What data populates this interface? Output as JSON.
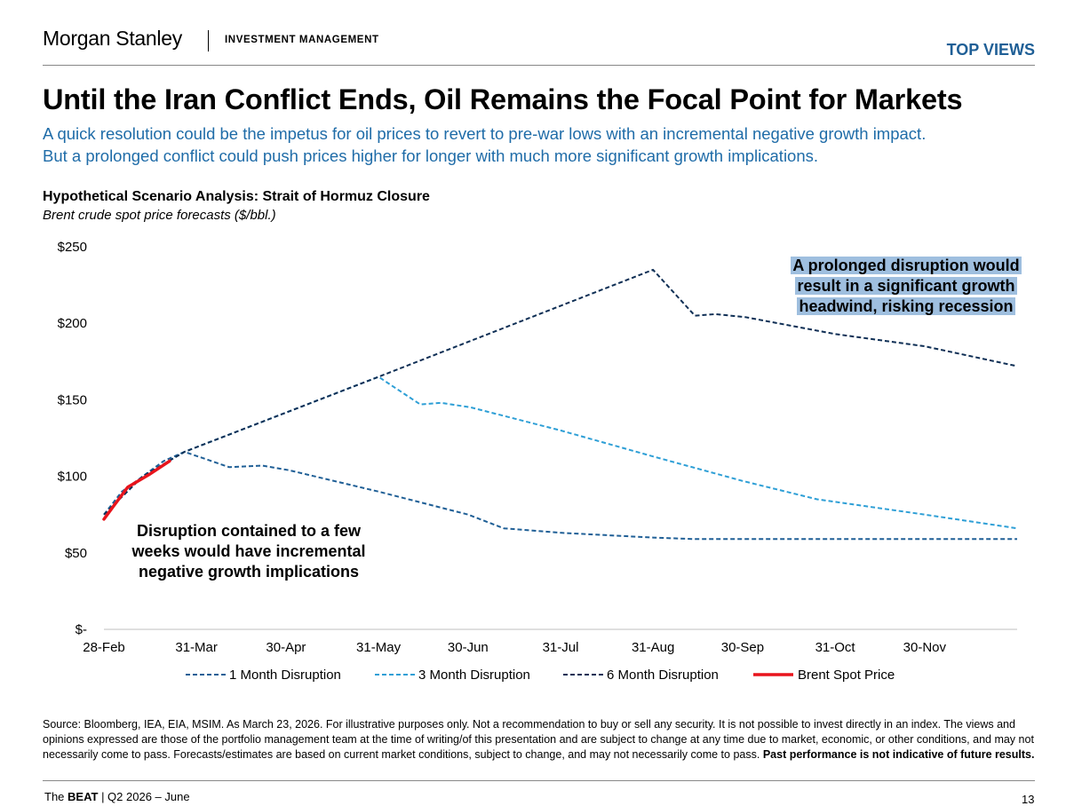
{
  "header": {
    "brand": "Morgan Stanley",
    "division": "INVESTMENT MANAGEMENT",
    "section": "TOP VIEWS"
  },
  "headline": {
    "title": "Until the Iran Conflict Ends, Oil Remains the Focal Point for Markets",
    "subtitle_lines": [
      "A quick resolution could be the impetus for oil prices to revert to pre-war lows with an incremental negative growth impact.",
      "But a prolonged conflict could push prices higher for longer with much more significant growth implications."
    ]
  },
  "chart_data": {
    "type": "line",
    "title": "Hypothetical Scenario Analysis: Strait of Hormuz Closure",
    "subtitle": "Brent crude spot price forecasts ($/bbl.)",
    "x_tick_labels": [
      "28-Feb",
      "31-Mar",
      "30-Apr",
      "31-May",
      "30-Jun",
      "31-Jul",
      "31-Aug",
      "30-Sep",
      "31-Oct",
      "30-Nov"
    ],
    "x_range": [
      "2026-02-28",
      "2026-12-31"
    ],
    "y_tick_labels": [
      "$-",
      "$50",
      "$100",
      "$150",
      "$200",
      "$250"
    ],
    "ylim": [
      0,
      250
    ],
    "grid": false,
    "legend_position": "bottom",
    "series": [
      {
        "name": "1 Month Disruption",
        "color": "#1f5f96",
        "style": "dashed",
        "points": [
          [
            "2026-02-28",
            75
          ],
          [
            "2026-03-06",
            90
          ],
          [
            "2026-03-13",
            100
          ],
          [
            "2026-03-20",
            110
          ],
          [
            "2026-03-27",
            116
          ],
          [
            "2026-04-11",
            106
          ],
          [
            "2026-04-22",
            107
          ],
          [
            "2026-05-01",
            104
          ],
          [
            "2026-05-31",
            90
          ],
          [
            "2026-06-30",
            75
          ],
          [
            "2026-07-12",
            66
          ],
          [
            "2026-08-01",
            63
          ],
          [
            "2026-08-31",
            60
          ],
          [
            "2026-09-14",
            59
          ],
          [
            "2026-10-31",
            59
          ],
          [
            "2026-12-31",
            59
          ]
        ]
      },
      {
        "name": "3 Month Disruption",
        "color": "#2e9fd6",
        "style": "dashed",
        "points": [
          [
            "2026-02-28",
            75
          ],
          [
            "2026-03-13",
            100
          ],
          [
            "2026-03-27",
            116
          ],
          [
            "2026-05-31",
            165
          ],
          [
            "2026-06-14",
            147
          ],
          [
            "2026-06-21",
            148
          ],
          [
            "2026-07-01",
            145
          ],
          [
            "2026-07-31",
            130
          ],
          [
            "2026-08-31",
            113
          ],
          [
            "2026-09-30",
            97
          ],
          [
            "2026-10-25",
            85
          ],
          [
            "2026-11-30",
            75
          ],
          [
            "2026-12-31",
            66
          ]
        ]
      },
      {
        "name": "6 Month Disruption",
        "color": "#0f2f55",
        "style": "dashed",
        "points": [
          [
            "2026-02-28",
            75
          ],
          [
            "2026-03-13",
            100
          ],
          [
            "2026-03-27",
            116
          ],
          [
            "2026-05-31",
            165
          ],
          [
            "2026-08-31",
            235
          ],
          [
            "2026-09-14",
            205
          ],
          [
            "2026-09-21",
            206
          ],
          [
            "2026-10-01",
            204
          ],
          [
            "2026-10-31",
            193
          ],
          [
            "2026-11-30",
            185
          ],
          [
            "2026-12-31",
            172
          ]
        ]
      },
      {
        "name": "Brent Spot Price",
        "color": "#e8141c",
        "style": "solid",
        "points": [
          [
            "2026-02-28",
            72
          ],
          [
            "2026-03-03",
            80
          ],
          [
            "2026-03-08",
            93
          ],
          [
            "2026-03-15",
            101
          ],
          [
            "2026-03-22",
            110
          ]
        ]
      }
    ],
    "annotations": [
      {
        "text_lines": [
          "Disruption contained to a few",
          "weeks would have incremental",
          "negative growth implications"
        ],
        "highlight": false
      },
      {
        "text_lines": [
          "A prolonged disruption would",
          "result in a significant growth",
          "headwind, risking recession"
        ],
        "highlight": true,
        "highlight_color": "#9fbfdf"
      }
    ]
  },
  "source_text": "Source: Bloomberg, IEA, EIA, MSIM. As March 23, 2026. For illustrative purposes only. Not a recommendation to buy or sell any security. It is not possible to invest directly in an index. The views and opinions expressed are those of the portfolio management team at the time of writing/of this presentation and are subject to change at any time due to market, economic, or other conditions, and may not necessarily come to pass.  Forecasts/estimates are based on current market conditions, subject to change, and may not necessarily come to pass.",
  "source_bold": "Past performance is not indicative of future results.",
  "footer": {
    "prefix": "The ",
    "brand": "BEAT",
    "rest": " | Q2 2026 – June",
    "page": "13"
  }
}
